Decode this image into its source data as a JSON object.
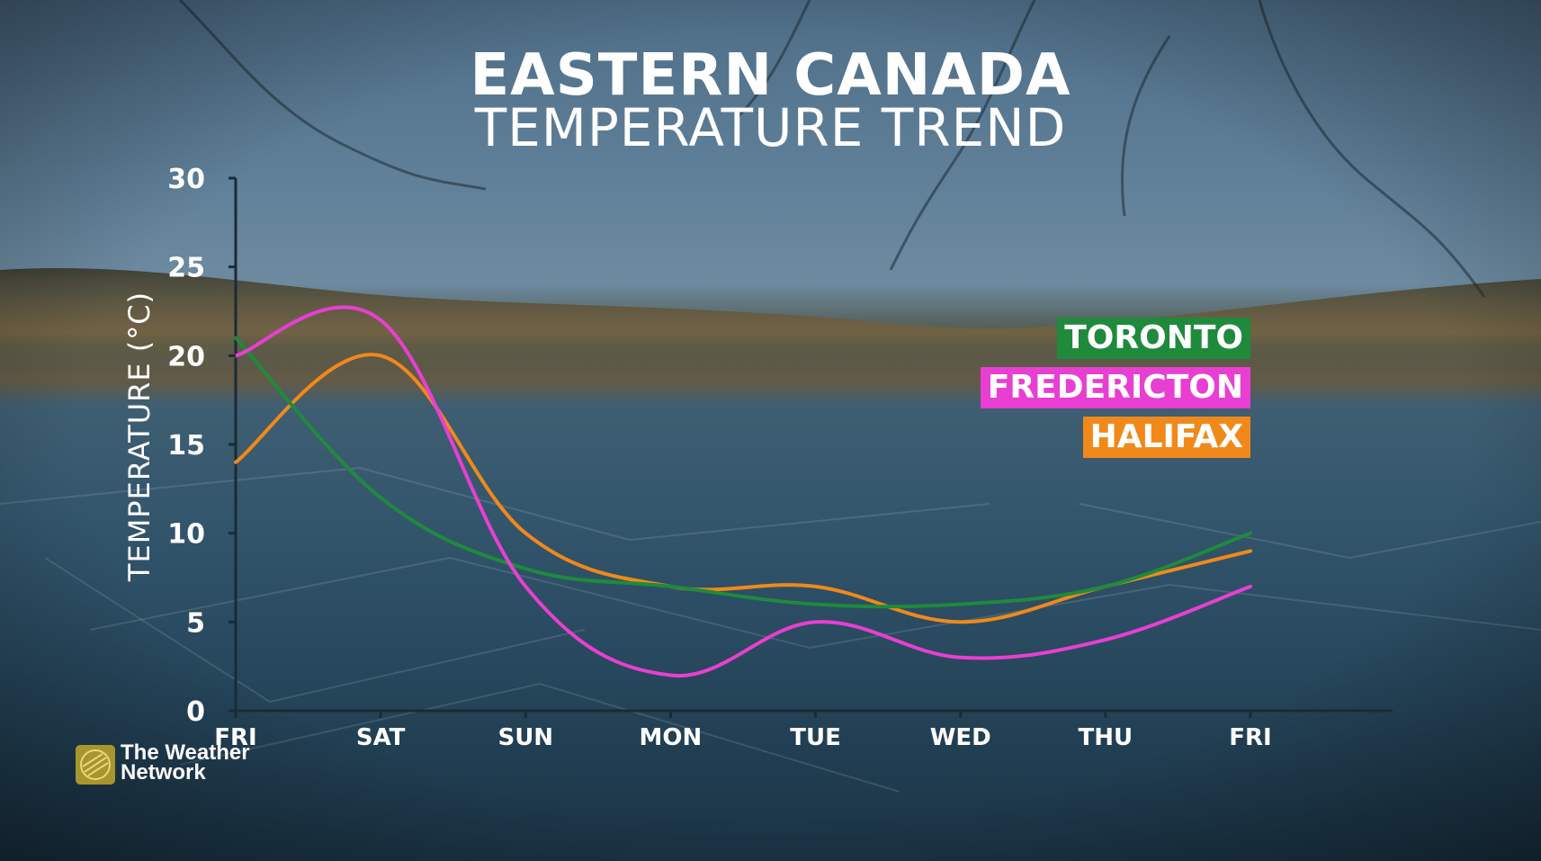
{
  "title": "EASTERN CANADA",
  "subtitle": "TEMPERATURE TREND",
  "brand": {
    "line1": "The Weather",
    "line2": "Network"
  },
  "chart_data": {
    "type": "line",
    "xlabel": "",
    "ylabel": "TEMPERATURE (°C)",
    "categories": [
      "FRI",
      "SAT",
      "SUN",
      "MON",
      "TUE",
      "WED",
      "THU",
      "FRI"
    ],
    "ylim": [
      0,
      30
    ],
    "yticks": [
      0,
      5,
      10,
      15,
      20,
      25,
      30
    ],
    "legend_position": "right",
    "series": [
      {
        "name": "TORONTO",
        "color": "#1f8a3c",
        "values": [
          21,
          12,
          8,
          7,
          6,
          6,
          7,
          10
        ]
      },
      {
        "name": "FREDERICTON",
        "color": "#e83fd2",
        "values": [
          20,
          22,
          7,
          2,
          5,
          3,
          4,
          7
        ]
      },
      {
        "name": "HALIFAX",
        "color": "#f0891a",
        "values": [
          14,
          20,
          10,
          7,
          7,
          5,
          7,
          9
        ]
      }
    ]
  }
}
